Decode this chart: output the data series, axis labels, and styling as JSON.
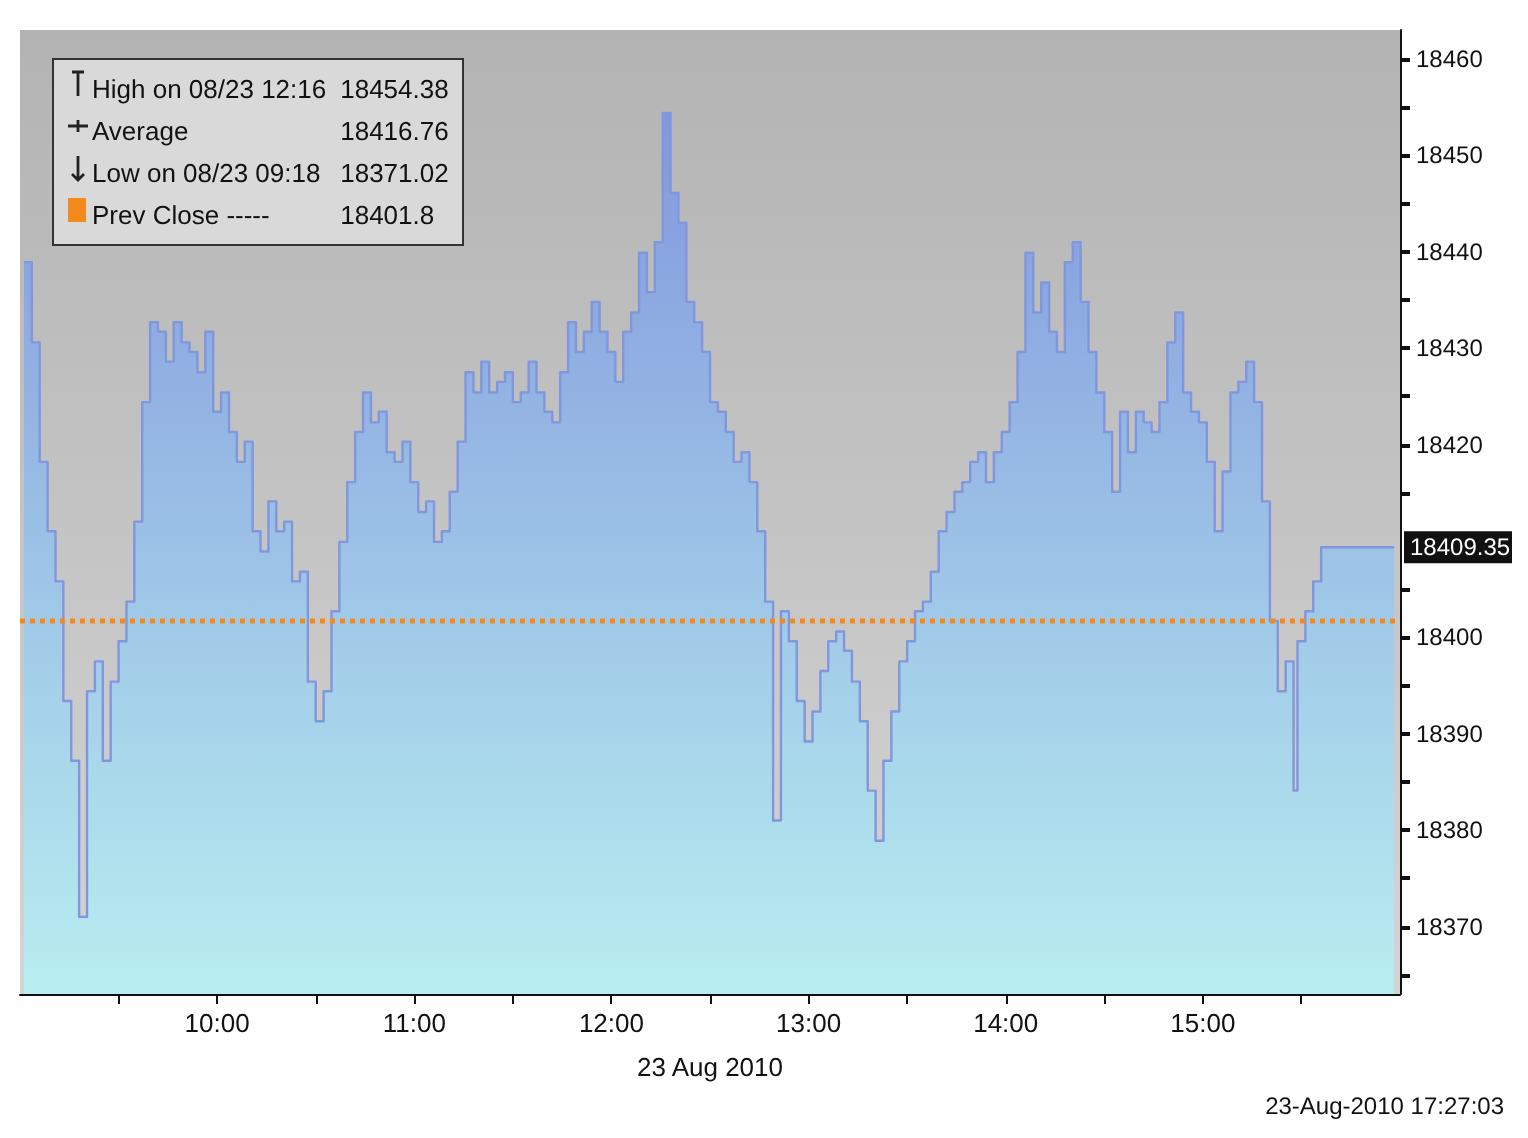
{
  "chart_data": {
    "type": "area",
    "xlabel": "23 Aug 2010",
    "x": [
      9.02,
      9.06,
      9.1,
      9.14,
      9.18,
      9.22,
      9.26,
      9.3,
      9.34,
      9.38,
      9.42,
      9.46,
      9.5,
      9.54,
      9.58,
      9.62,
      9.66,
      9.7,
      9.74,
      9.78,
      9.82,
      9.86,
      9.9,
      9.94,
      9.98,
      10.02,
      10.06,
      10.1,
      10.14,
      10.18,
      10.22,
      10.26,
      10.3,
      10.34,
      10.38,
      10.42,
      10.46,
      10.5,
      10.54,
      10.58,
      10.62,
      10.66,
      10.7,
      10.74,
      10.78,
      10.82,
      10.86,
      10.9,
      10.94,
      10.98,
      11.02,
      11.06,
      11.1,
      11.14,
      11.18,
      11.22,
      11.26,
      11.3,
      11.34,
      11.38,
      11.42,
      11.46,
      11.5,
      11.54,
      11.58,
      11.62,
      11.66,
      11.7,
      11.74,
      11.78,
      11.82,
      11.86,
      11.9,
      11.94,
      11.98,
      12.02,
      12.06,
      12.1,
      12.14,
      12.18,
      12.22,
      12.26,
      12.3,
      12.34,
      12.38,
      12.42,
      12.46,
      12.5,
      12.54,
      12.58,
      12.62,
      12.66,
      12.7,
      12.74,
      12.78,
      12.82,
      12.86,
      12.9,
      12.94,
      12.98,
      13.02,
      13.06,
      13.1,
      13.14,
      13.18,
      13.22,
      13.26,
      13.3,
      13.34,
      13.38,
      13.42,
      13.46,
      13.5,
      13.54,
      13.58,
      13.62,
      13.66,
      13.7,
      13.74,
      13.78,
      13.82,
      13.86,
      13.9,
      13.94,
      13.98,
      14.02,
      14.06,
      14.1,
      14.14,
      14.18,
      14.22,
      14.26,
      14.3,
      14.34,
      14.38,
      14.42,
      14.46,
      14.5,
      14.54,
      14.58,
      14.62,
      14.66,
      14.7,
      14.74,
      14.78,
      14.82,
      14.86,
      14.9,
      14.94,
      14.98,
      15.02,
      15.06,
      15.1,
      15.14,
      15.18,
      15.22,
      15.26,
      15.3,
      15.34,
      15.38,
      15.42,
      15.46,
      15.48,
      15.52,
      15.56,
      15.6,
      15.97
    ],
    "series": [
      {
        "color": "#8197dd",
        "values": [
          18438.9,
          18430.6,
          18418.2,
          18411.0,
          18405.8,
          18393.4,
          18387.2,
          18371.0,
          18394.4,
          18397.5,
          18387.2,
          18395.4,
          18399.6,
          18403.7,
          18412.0,
          18424.4,
          18432.7,
          18431.7,
          18428.6,
          18432.7,
          18430.6,
          18429.6,
          18427.5,
          18431.7,
          18423.4,
          18425.4,
          18421.3,
          18418.2,
          18420.3,
          18411.0,
          18408.9,
          18414.1,
          18411.0,
          18412.0,
          18405.8,
          18406.8,
          18395.4,
          18391.3,
          18394.4,
          18402.7,
          18409.9,
          18416.1,
          18421.3,
          18425.4,
          18422.3,
          18423.4,
          18419.2,
          18418.2,
          18420.3,
          18416.1,
          18413.0,
          18414.1,
          18409.9,
          18411.0,
          18415.1,
          18420.3,
          18427.5,
          18425.4,
          18428.6,
          18425.4,
          18426.5,
          18427.5,
          18424.4,
          18425.4,
          18428.6,
          18425.4,
          18423.4,
          18422.3,
          18427.5,
          18432.7,
          18429.6,
          18431.7,
          18434.8,
          18431.7,
          18429.6,
          18426.5,
          18431.7,
          18433.7,
          18439.9,
          18435.8,
          18441.0,
          18454.4,
          18446.1,
          18443.0,
          18434.8,
          18432.7,
          18429.6,
          18424.4,
          18423.4,
          18421.3,
          18418.2,
          18419.2,
          18416.1,
          18411.0,
          18403.7,
          18381.0,
          18402.7,
          18399.6,
          18393.4,
          18389.2,
          18392.3,
          18396.5,
          18399.6,
          18400.6,
          18398.6,
          18395.4,
          18391.3,
          18384.1,
          18378.9,
          18387.2,
          18392.3,
          18397.5,
          18399.6,
          18402.7,
          18403.7,
          18406.8,
          18411.0,
          18413.0,
          18415.1,
          18416.1,
          18418.2,
          18419.2,
          18416.1,
          18419.2,
          18421.3,
          18424.4,
          18429.6,
          18439.9,
          18433.7,
          18436.8,
          18431.7,
          18429.6,
          18438.9,
          18441.0,
          18434.8,
          18429.6,
          18425.4,
          18421.3,
          18415.1,
          18423.4,
          18419.2,
          18423.4,
          18422.3,
          18421.3,
          18424.4,
          18430.6,
          18433.7,
          18425.4,
          18423.4,
          18422.3,
          18418.2,
          18411.0,
          18417.2,
          18425.4,
          18426.5,
          18428.6,
          18424.4,
          18414.1,
          18401.7,
          18394.4,
          18397.5,
          18384.1,
          18399.6,
          18402.7,
          18405.8,
          18409.35,
          18409.35
        ]
      }
    ],
    "xlim": [
      9,
      16
    ],
    "xticks": [
      {
        "value": 9.5,
        "label": null
      },
      {
        "value": 10,
        "label": "10:00"
      },
      {
        "value": 10.5,
        "label": null
      },
      {
        "value": 11,
        "label": "11:00"
      },
      {
        "value": 11.5,
        "label": null
      },
      {
        "value": 12,
        "label": "12:00"
      },
      {
        "value": 12.5,
        "label": null
      },
      {
        "value": 13,
        "label": "13:00"
      },
      {
        "value": 13.5,
        "label": null
      },
      {
        "value": 14,
        "label": "14:00"
      },
      {
        "value": 14.5,
        "label": null
      },
      {
        "value": 15,
        "label": "15:00"
      },
      {
        "value": 15.5,
        "label": null
      }
    ],
    "ylim": [
      18363,
      18463
    ],
    "yticks": [
      {
        "value": 18365,
        "label": null
      },
      18370,
      {
        "value": 18375,
        "label": null
      },
      18380,
      {
        "value": 18385,
        "label": null
      },
      18390,
      {
        "value": 18395,
        "label": null
      },
      18400,
      {
        "value": 18405,
        "label": null
      },
      {
        "value": 18415,
        "label": null
      },
      18420,
      {
        "value": 18425,
        "label": null
      },
      18430,
      {
        "value": 18435,
        "label": null
      },
      18440,
      {
        "value": 18445,
        "label": null
      },
      18450,
      {
        "value": 18455,
        "label": null
      },
      18460
    ],
    "ref_lines": [
      {
        "axis": "y",
        "value": 18401.8,
        "label": "Prev Close -----",
        "color": "#f28a1e",
        "line_style": "dotted"
      }
    ],
    "annotations": [
      "High on 08/23 12:16",
      "18454.38",
      "Average",
      "18416.76",
      "Low on 08/23 09:18",
      "18371.02",
      "18401.8",
      "18409.35",
      "23-Aug-2010 17:27:03"
    ],
    "marker": "none",
    "grid": false
  }
}
